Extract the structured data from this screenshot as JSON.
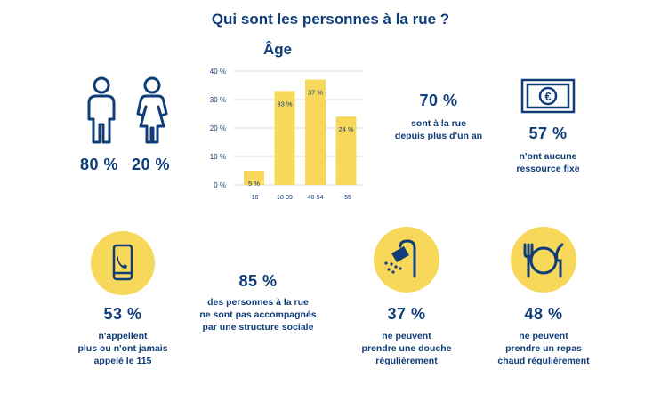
{
  "title": "Qui sont les personnes à la rue ?",
  "gender": {
    "men": "80 %",
    "women": "20 %"
  },
  "chart_data": {
    "type": "bar",
    "title": "Âge",
    "categories": [
      "-18",
      "18-39",
      "40-54",
      "+55"
    ],
    "values": [
      5,
      33,
      37,
      24
    ],
    "data_labels": [
      "5 %",
      "33 %",
      "37 %",
      "24 %"
    ],
    "yticks": [
      "0 %",
      "10 %",
      "20 %",
      "30 %",
      "40 %"
    ],
    "ylim": [
      0,
      40
    ],
    "grid": true,
    "bar_color": "#f7d85a"
  },
  "stats": {
    "street_year": {
      "value": "70 %",
      "line1": "sont à la rue",
      "line2": "depuis plus d'un an"
    },
    "no_income": {
      "value": "57 %",
      "line1": "n'ont aucune",
      "line2": "ressource fixe"
    },
    "never_called": {
      "value": "53 %",
      "line1": "n'appellent",
      "line2": "plus ou n'ont jamais",
      "line3": "appelé le 115"
    },
    "unaccompanied": {
      "value": "85 %",
      "line1": "des personnes à la rue",
      "line2": "ne sont pas accompagnés",
      "line3": "par une structure sociale"
    },
    "no_shower": {
      "value": "37 %",
      "line1": "ne peuvent",
      "line2": "prendre une douche",
      "line3": "régulièrement"
    },
    "no_meal": {
      "value": "48 %",
      "line1": "ne peuvent",
      "line2": "prendre un repas",
      "line3": "chaud régulièrement"
    }
  },
  "colors": {
    "navy": "#0f3d78",
    "yellow": "#f7d85a",
    "grid": "#cfcfcf"
  },
  "icons": [
    "man-icon",
    "woman-icon",
    "banknote-icon",
    "phone-icon",
    "shower-icon",
    "plate-icon"
  ]
}
